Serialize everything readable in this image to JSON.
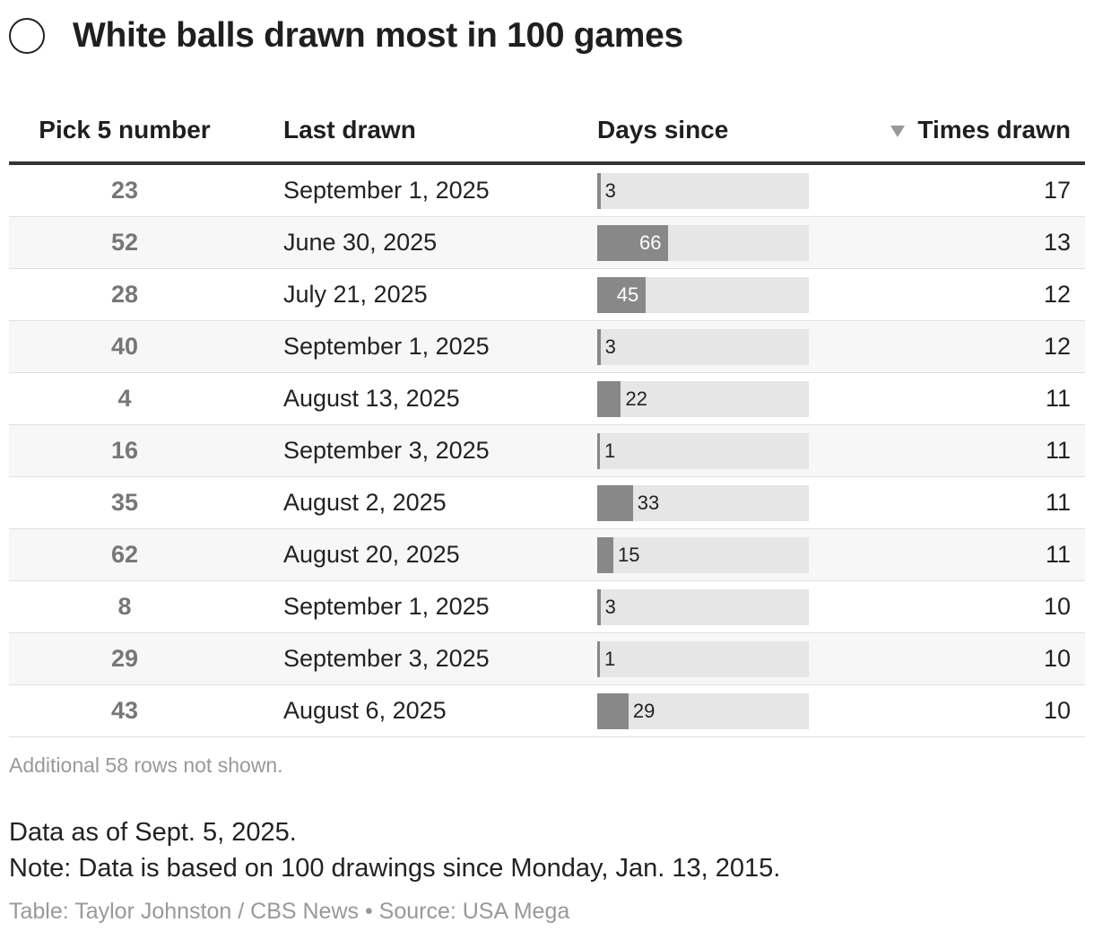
{
  "title": "White balls drawn most in 100 games",
  "columns": {
    "pick": "Pick 5 number",
    "last": "Last drawn",
    "days": "Days since",
    "times": "Times drawn"
  },
  "chart_data": {
    "type": "table",
    "title": "White balls drawn most in 100 games",
    "columns": [
      "Pick 5 number",
      "Last drawn",
      "Days since",
      "Times drawn"
    ],
    "days_max": 196,
    "rows": [
      {
        "number": "23",
        "last_drawn": "September 1, 2025",
        "days_since": 3,
        "times_drawn": "17"
      },
      {
        "number": "52",
        "last_drawn": "June 30, 2025",
        "days_since": 66,
        "times_drawn": "13"
      },
      {
        "number": "28",
        "last_drawn": "July 21, 2025",
        "days_since": 45,
        "times_drawn": "12"
      },
      {
        "number": "40",
        "last_drawn": "September 1, 2025",
        "days_since": 3,
        "times_drawn": "12"
      },
      {
        "number": "4",
        "last_drawn": "August 13, 2025",
        "days_since": 22,
        "times_drawn": "11"
      },
      {
        "number": "16",
        "last_drawn": "September 3, 2025",
        "days_since": 1,
        "times_drawn": "11"
      },
      {
        "number": "35",
        "last_drawn": "August 2, 2025",
        "days_since": 33,
        "times_drawn": "11"
      },
      {
        "number": "62",
        "last_drawn": "August 20, 2025",
        "days_since": 15,
        "times_drawn": "11"
      },
      {
        "number": "8",
        "last_drawn": "September 1, 2025",
        "days_since": 3,
        "times_drawn": "10"
      },
      {
        "number": "29",
        "last_drawn": "September 3, 2025",
        "days_since": 1,
        "times_drawn": "10"
      },
      {
        "number": "43",
        "last_drawn": "August 6, 2025",
        "days_since": 29,
        "times_drawn": "10"
      }
    ]
  },
  "footnote": "Additional 58 rows not shown.",
  "note_date": "Data as of Sept. 5, 2025.",
  "note_basis": "Note: Data is based on 100 drawings since Monday, Jan. 13, 2015.",
  "credit": "Table: Taylor Johnston / CBS News • Source: USA Mega",
  "colors": {
    "bar": "#888888",
    "track": "#e6e6e6",
    "bar_label_inside": "#ffffff",
    "bar_label_outside": "#222222"
  }
}
